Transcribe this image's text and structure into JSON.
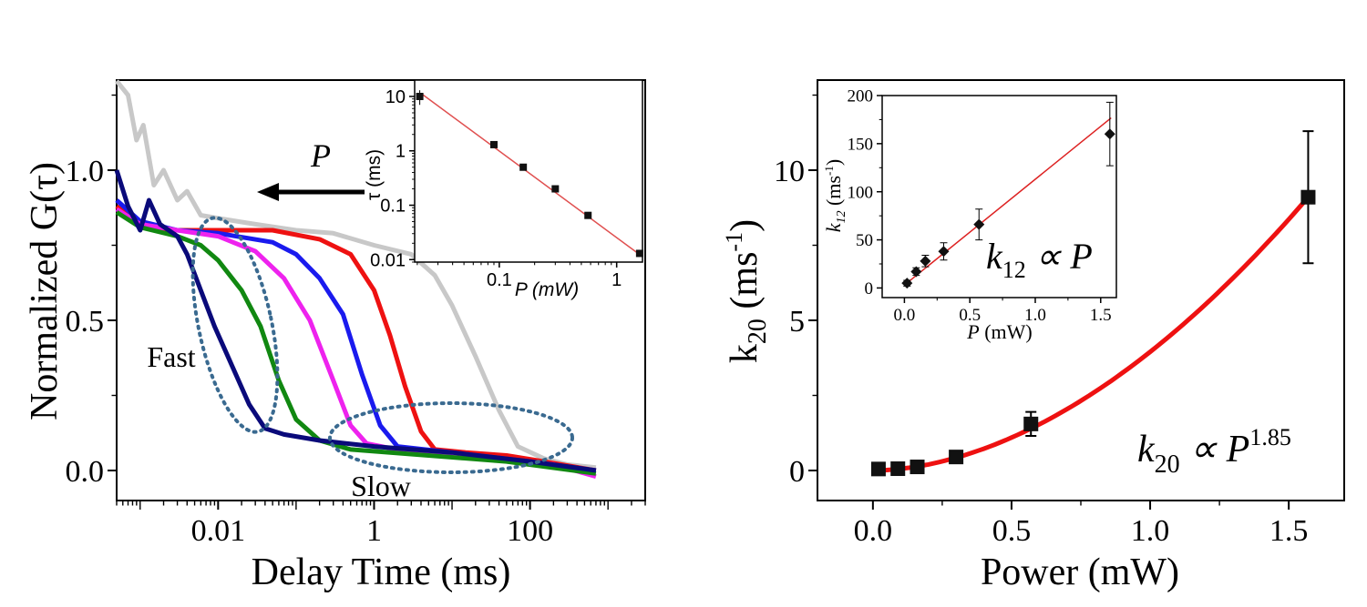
{
  "chart_data": [
    {
      "type": "line",
      "xscale": "log",
      "xlabel": "Delay Time (ms)",
      "ylabel": "Normalized G(τ)",
      "xlim": [
        0.0005,
        3000
      ],
      "ylim": [
        -0.1,
        1.3
      ],
      "xticks": [
        0.01,
        1,
        100
      ],
      "xtick_labels": [
        "0.01",
        "1",
        "100"
      ],
      "yticks": [
        0,
        0.5,
        1.0
      ],
      "ytick_labels": [
        "0.0",
        "0.5",
        "1.0"
      ],
      "annotations": {
        "arrow_label": "P",
        "fast": "Fast",
        "slow": "Slow"
      },
      "series": [
        {
          "color": "#c8c8c8",
          "x": [
            0.0005,
            0.0007,
            0.0009,
            0.0011,
            0.0015,
            0.002,
            0.003,
            0.004,
            0.006,
            0.01,
            0.03,
            0.1,
            0.3,
            1,
            3,
            6,
            10,
            20,
            40,
            70,
            150,
            300,
            700
          ],
          "y": [
            1.3,
            1.25,
            1.1,
            1.15,
            0.95,
            1.0,
            0.9,
            0.93,
            0.85,
            0.84,
            0.82,
            0.8,
            0.79,
            0.75,
            0.72,
            0.65,
            0.55,
            0.38,
            0.2,
            0.08,
            0.04,
            0.02,
            0.01
          ]
        },
        {
          "color": "#ee1111",
          "x": [
            0.0005,
            0.001,
            0.002,
            0.01,
            0.05,
            0.2,
            0.5,
            1,
            1.6,
            2.5,
            4,
            6,
            15,
            50,
            150,
            700
          ],
          "y": [
            0.88,
            0.82,
            0.8,
            0.8,
            0.8,
            0.77,
            0.72,
            0.6,
            0.45,
            0.28,
            0.13,
            0.07,
            0.06,
            0.05,
            0.03,
            0.0
          ]
        },
        {
          "color": "#1a1aee",
          "x": [
            0.0005,
            0.001,
            0.003,
            0.01,
            0.05,
            0.1,
            0.2,
            0.4,
            0.7,
            1.2,
            2,
            10,
            100,
            700
          ],
          "y": [
            0.9,
            0.83,
            0.8,
            0.79,
            0.76,
            0.72,
            0.64,
            0.52,
            0.32,
            0.15,
            0.08,
            0.06,
            0.03,
            0.0
          ]
        },
        {
          "color": "#ee22ee",
          "x": [
            0.0005,
            0.001,
            0.003,
            0.01,
            0.03,
            0.07,
            0.15,
            0.3,
            0.5,
            0.8,
            3,
            30,
            200,
            700
          ],
          "y": [
            0.87,
            0.82,
            0.8,
            0.78,
            0.73,
            0.64,
            0.5,
            0.3,
            0.15,
            0.09,
            0.06,
            0.04,
            0.02,
            -0.02
          ]
        },
        {
          "color": "#118811",
          "x": [
            0.0005,
            0.001,
            0.003,
            0.006,
            0.01,
            0.02,
            0.035,
            0.06,
            0.1,
            0.2,
            0.5,
            5,
            50,
            700
          ],
          "y": [
            0.86,
            0.81,
            0.78,
            0.75,
            0.7,
            0.6,
            0.48,
            0.3,
            0.17,
            0.1,
            0.07,
            0.05,
            0.03,
            -0.01
          ]
        },
        {
          "color": "#0a0a7a",
          "x": [
            0.0005,
            0.0007,
            0.001,
            0.0013,
            0.0018,
            0.003,
            0.004,
            0.006,
            0.009,
            0.015,
            0.025,
            0.04,
            0.07,
            0.2,
            1,
            10,
            100,
            700
          ],
          "y": [
            1.0,
            0.88,
            0.8,
            0.9,
            0.82,
            0.78,
            0.72,
            0.6,
            0.48,
            0.35,
            0.22,
            0.14,
            0.12,
            0.1,
            0.08,
            0.06,
            0.03,
            0.0
          ]
        }
      ]
    },
    {
      "type": "scatter",
      "xscale": "log",
      "yscale": "log",
      "xlabel": "P (mW)",
      "ylabel": "τ (ms)",
      "xlim": [
        0.019,
        1.66
      ],
      "ylim": [
        0.009,
        20
      ],
      "xticks": [
        0.1,
        1
      ],
      "xtick_labels": [
        "0.1",
        "1"
      ],
      "yticks": [
        0.01,
        0.1,
        1,
        10
      ],
      "ytick_labels": [
        "0.01",
        "0.1",
        "1",
        "10"
      ],
      "points": {
        "x": [
          0.021,
          0.09,
          0.16,
          0.3,
          0.57,
          1.57
        ],
        "y": [
          10,
          1.3,
          0.5,
          0.2,
          0.065,
          0.013
        ],
        "yerr_low": [
          7,
          1.3,
          0.5,
          0.2,
          0.065,
          0.013
        ],
        "yerr_high": [
          13,
          1.3,
          0.5,
          0.2,
          0.065,
          0.013
        ]
      },
      "fit": {
        "x": [
          0.022,
          1.6
        ],
        "y": [
          11,
          0.012
        ],
        "color": "#e05050"
      }
    },
    {
      "type": "scatter",
      "xlabel": "Power (mW)",
      "ylabel": {
        "base": "k",
        "sub": "20",
        "unit_open": " (ms",
        "sup": "-1",
        "unit_close": ")"
      },
      "xlim": [
        -0.2,
        1.7
      ],
      "ylim": [
        -1,
        13
      ],
      "xticks": [
        0,
        0.5,
        1.0,
        1.5
      ],
      "xtick_labels": [
        "0.0",
        "0.5",
        "1.0",
        "1.5"
      ],
      "yticks": [
        0,
        5,
        10
      ],
      "ytick_labels": [
        "0",
        "5",
        "10"
      ],
      "points": {
        "x": [
          0.02,
          0.09,
          0.16,
          0.3,
          0.57,
          1.57
        ],
        "y": [
          0.05,
          0.06,
          0.12,
          0.45,
          1.55,
          9.1
        ],
        "yerr": [
          0.1,
          0.1,
          0.1,
          0.15,
          0.4,
          2.2
        ]
      },
      "fit": {
        "coef": 3.95,
        "exponent": 1.85,
        "color": "#ee1111"
      },
      "annotation": {
        "base": "k",
        "sub": "20",
        "op": " ∝ P",
        "sup": "1.85"
      }
    },
    {
      "type": "scatter",
      "xlabel": {
        "var": "P",
        "unit": " (mW)"
      },
      "ylabel": {
        "base": "k",
        "sub": "12",
        "unit_open": " (ms",
        "sup": "-1",
        "unit_close": ")"
      },
      "xlim": [
        -0.17,
        1.62
      ],
      "ylim": [
        -10,
        200
      ],
      "xticks": [
        0,
        0.5,
        1.0,
        1.5
      ],
      "xtick_labels": [
        "0.0",
        "0.5",
        "1.0",
        "1.5"
      ],
      "yticks": [
        0,
        50,
        100,
        150,
        200
      ],
      "ytick_labels": [
        "0",
        "50",
        "100",
        "150",
        "200"
      ],
      "points": {
        "x": [
          0.02,
          0.09,
          0.16,
          0.3,
          0.57,
          1.57
        ],
        "y": [
          5,
          17,
          28,
          38,
          66,
          160
        ],
        "yerr": [
          3,
          4,
          6,
          9,
          16,
          33
        ]
      },
      "fit": {
        "slope": 110,
        "intercept": 3,
        "color": "#dd2222"
      },
      "annotation": {
        "base": "k",
        "sub": "12",
        "op": " ∝ P"
      }
    }
  ]
}
